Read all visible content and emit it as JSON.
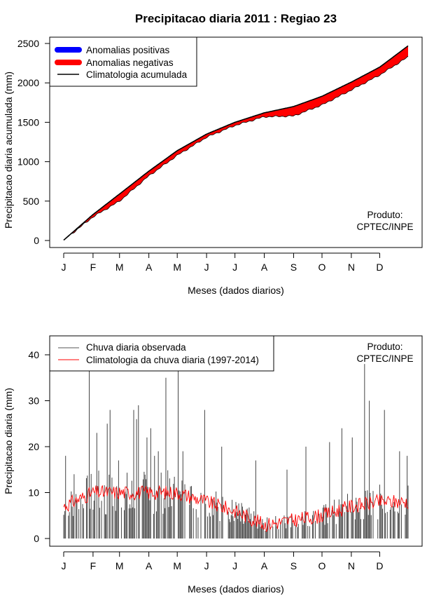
{
  "chart_data": [
    {
      "type": "area",
      "title": "Precipitacao diaria 2011 : Regiao 23",
      "xlabel": "Meses (dados diarios)",
      "ylabel": "Precipitacao diaria acumulada (mm)",
      "ylim": [
        0,
        2500
      ],
      "yticks": [
        "0",
        "500",
        "1000",
        "1500",
        "2000",
        "2500"
      ],
      "month_ticks": [
        "J",
        "F",
        "M",
        "A",
        "M",
        "J",
        "J",
        "A",
        "S",
        "O",
        "N",
        "D"
      ],
      "month_start_days": [
        1,
        32,
        60,
        91,
        121,
        152,
        182,
        213,
        244,
        274,
        305,
        335
      ],
      "days": 365,
      "legend": [
        "Anomalias positivas",
        "Anomalias negativas",
        "Climatologia acumulada"
      ],
      "legend_colors": [
        "#0000ff",
        "#ff0000",
        "#000000"
      ],
      "credit": [
        "Produto:",
        "CPTEC/INPE"
      ],
      "climatology_knots": {
        "day": [
          1,
          32,
          60,
          91,
          121,
          152,
          182,
          213,
          244,
          274,
          305,
          335,
          365
        ],
        "value": [
          5,
          330,
          590,
          880,
          1140,
          1350,
          1500,
          1620,
          1700,
          1830,
          2010,
          2200,
          2470
        ]
      },
      "observed_knots": {
        "day": [
          1,
          32,
          60,
          91,
          121,
          152,
          182,
          213,
          244,
          274,
          305,
          335,
          365
        ],
        "value": [
          5,
          300,
          500,
          820,
          1080,
          1310,
          1460,
          1570,
          1580,
          1720,
          1910,
          2100,
          2330
        ]
      }
    },
    {
      "type": "line",
      "xlabel": "Meses (dados diarios)",
      "ylabel": "Precipitacao diaria (mm)",
      "ylim": [
        0,
        42
      ],
      "yticks": [
        "0",
        "10",
        "20",
        "30",
        "40"
      ],
      "month_ticks": [
        "J",
        "F",
        "M",
        "A",
        "M",
        "J",
        "J",
        "A",
        "S",
        "O",
        "N",
        "D"
      ],
      "month_start_days": [
        1,
        32,
        60,
        91,
        121,
        152,
        182,
        213,
        244,
        274,
        305,
        335
      ],
      "days": 365,
      "legend": [
        "Chuva diaria observada",
        "Climatologia da chuva diaria (1997-2014)"
      ],
      "legend_colors": [
        "#555555",
        "#ff0000"
      ],
      "credit": [
        "Produto:",
        "CPTEC/INPE"
      ],
      "observed_peaks": {
        "day": [
          3,
          12,
          28,
          36,
          47,
          50,
          59,
          75,
          78,
          80,
          89,
          93,
          97,
          101,
          109,
          122,
          127,
          150,
          168,
          204,
          237,
          257,
          282,
          295,
          306,
          319,
          324,
          340,
          356,
          364
        ],
        "value": [
          18,
          14,
          42,
          23,
          25,
          28,
          17,
          28,
          26,
          29,
          22,
          24,
          18,
          19,
          35,
          38,
          19,
          28,
          20,
          17,
          15,
          20,
          21,
          24,
          22,
          38,
          30,
          28,
          19,
          18
        ]
      },
      "climatology_knots": {
        "day": [
          1,
          32,
          60,
          91,
          121,
          152,
          182,
          213,
          244,
          274,
          305,
          335,
          365
        ],
        "value": [
          7,
          10,
          10,
          10,
          10,
          8,
          6,
          3,
          4,
          5,
          7,
          8,
          8
        ]
      }
    }
  ]
}
